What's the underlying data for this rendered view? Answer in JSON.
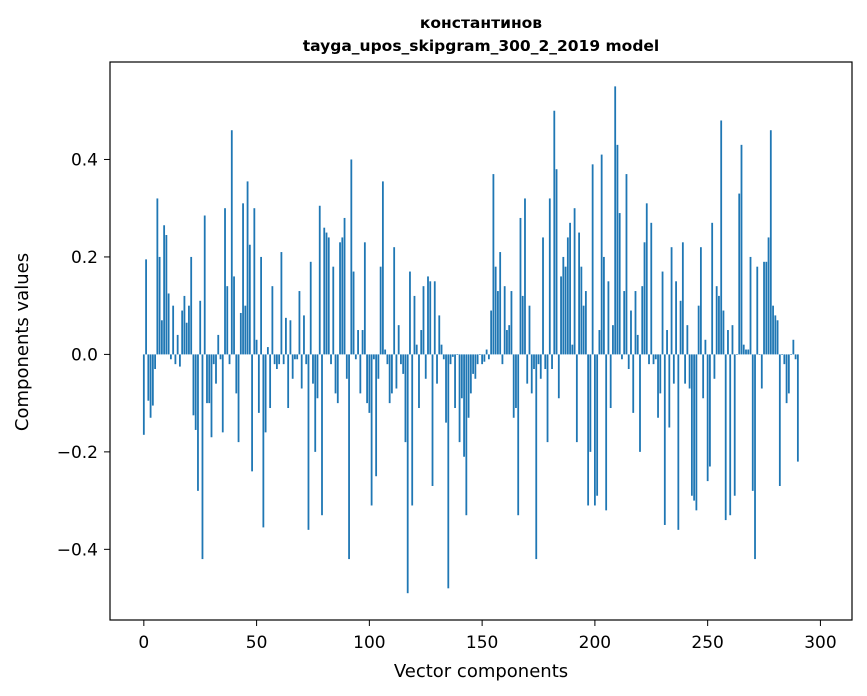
{
  "chart_data": {
    "type": "bar",
    "title_line1": "константинов",
    "title_line2": "tayga_upos_skipgram_300_2_2019 model",
    "xlabel": "Vector components",
    "ylabel": "Components values",
    "xlim": [
      -15,
      314
    ],
    "ylim": [
      -0.545,
      0.6
    ],
    "xticks": [
      0,
      50,
      100,
      150,
      200,
      250,
      300
    ],
    "xtick_labels": [
      "0",
      "50",
      "100",
      "150",
      "200",
      "250",
      "300"
    ],
    "yticks": [
      -0.4,
      -0.2,
      0.0,
      0.2,
      0.4
    ],
    "ytick_labels": [
      "−0.4",
      "−0.2",
      "0.0",
      "0.2",
      "0.4"
    ],
    "bar_color": "#1f77b4",
    "values": [
      -0.165,
      0.195,
      -0.095,
      -0.13,
      -0.105,
      -0.03,
      0.32,
      0.2,
      0.07,
      0.265,
      0.245,
      0.125,
      -0.01,
      0.1,
      -0.02,
      0.04,
      -0.025,
      0.09,
      0.12,
      0.065,
      0.1,
      0.2,
      -0.125,
      -0.155,
      -0.28,
      0.11,
      -0.42,
      0.285,
      -0.1,
      -0.1,
      -0.17,
      -0.02,
      -0.06,
      0.04,
      -0.01,
      -0.16,
      0.3,
      0.14,
      -0.02,
      0.46,
      0.16,
      -0.08,
      -0.18,
      0.085,
      0.31,
      0.1,
      0.355,
      0.225,
      -0.24,
      0.3,
      0.03,
      -0.12,
      0.2,
      -0.355,
      -0.16,
      0.015,
      -0.11,
      0.14,
      -0.02,
      -0.03,
      -0.02,
      0.21,
      -0.02,
      0.075,
      -0.11,
      0.07,
      -0.05,
      -0.01,
      -0.01,
      0.13,
      -0.07,
      0.08,
      -0.02,
      -0.36,
      0.19,
      -0.06,
      -0.2,
      -0.09,
      0.305,
      -0.33,
      0.26,
      0.25,
      0.24,
      -0.02,
      0.18,
      -0.08,
      -0.1,
      0.23,
      0.24,
      0.28,
      -0.05,
      -0.42,
      0.4,
      0.17,
      -0.01,
      0.05,
      -0.08,
      0.05,
      0.23,
      -0.1,
      -0.12,
      -0.31,
      -0.01,
      -0.25,
      -0.05,
      0.18,
      0.355,
      0.01,
      -0.02,
      -0.1,
      -0.08,
      0.22,
      -0.07,
      0.06,
      -0.02,
      -0.04,
      -0.18,
      -0.49,
      0.17,
      -0.31,
      0.12,
      0.02,
      -0.11,
      0.05,
      0.14,
      -0.05,
      0.16,
      0.15,
      -0.27,
      0.15,
      -0.06,
      0.08,
      0.02,
      -0.01,
      -0.14,
      -0.48,
      -0.02,
      -0.005,
      -0.11,
      0.0,
      -0.18,
      -0.09,
      -0.21,
      -0.33,
      -0.13,
      -0.08,
      -0.04,
      -0.05,
      -0.02,
      0.0,
      -0.02,
      -0.015,
      0.01,
      -0.01,
      0.09,
      0.37,
      0.18,
      0.13,
      0.21,
      -0.02,
      0.14,
      0.05,
      0.06,
      0.13,
      -0.13,
      -0.11,
      -0.33,
      0.28,
      0.12,
      0.32,
      -0.06,
      0.1,
      -0.08,
      -0.03,
      -0.42,
      -0.02,
      -0.05,
      0.24,
      -0.03,
      -0.18,
      0.32,
      -0.03,
      0.5,
      0.38,
      -0.09,
      0.16,
      0.2,
      0.18,
      0.24,
      0.27,
      0.02,
      0.3,
      -0.18,
      0.25,
      0.18,
      0.1,
      0.13,
      -0.31,
      -0.2,
      0.39,
      -0.31,
      -0.29,
      0.05,
      0.41,
      0.2,
      -0.32,
      0.15,
      -0.11,
      0.06,
      0.55,
      0.43,
      0.29,
      -0.01,
      0.13,
      0.37,
      -0.03,
      0.09,
      -0.12,
      0.13,
      0.04,
      -0.2,
      0.14,
      0.23,
      0.31,
      -0.02,
      0.27,
      -0.02,
      -0.01,
      -0.13,
      -0.08,
      0.17,
      -0.35,
      0.05,
      -0.15,
      0.22,
      -0.06,
      0.15,
      -0.36,
      0.11,
      0.23,
      -0.06,
      0.06,
      -0.07,
      -0.29,
      -0.3,
      -0.32,
      0.1,
      0.22,
      -0.09,
      0.03,
      -0.26,
      -0.23,
      0.27,
      -0.05,
      0.14,
      0.12,
      0.48,
      0.09,
      -0.34,
      0.05,
      -0.33,
      0.06,
      -0.29,
      0.0,
      0.33,
      0.43,
      0.02,
      0.01,
      0.01,
      0.2,
      -0.28,
      -0.42,
      0.18,
      0.0,
      -0.07,
      0.19,
      0.19,
      0.24,
      0.46,
      0.1,
      0.08,
      0.07,
      -0.27,
      0.0,
      -0.02,
      -0.1,
      -0.08,
      0.0,
      0.03,
      -0.01,
      -0.22
    ]
  }
}
